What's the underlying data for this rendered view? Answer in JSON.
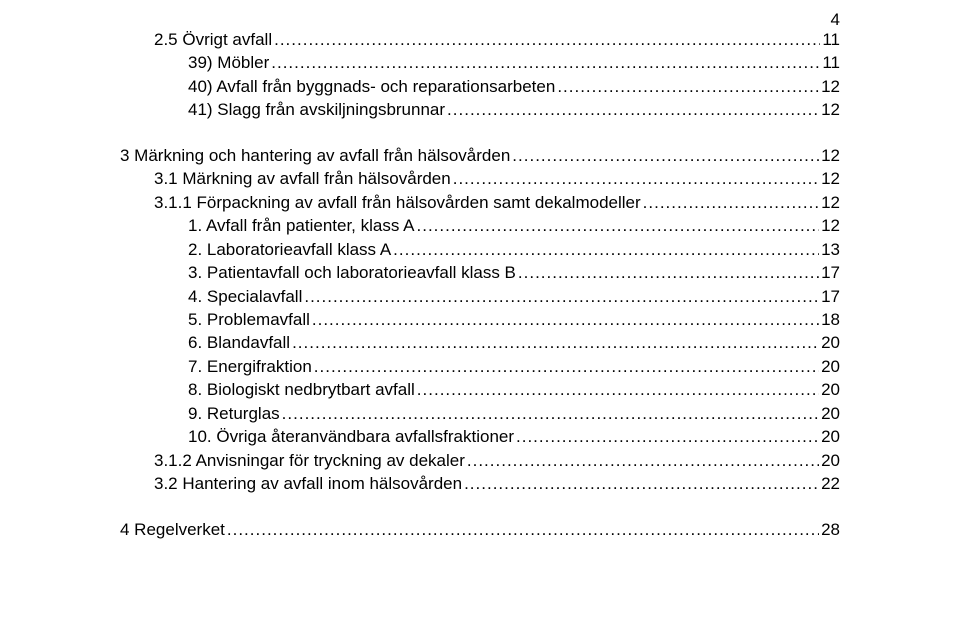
{
  "page_number": "4",
  "font": {
    "family": "Arial",
    "size_pt": 13
  },
  "colors": {
    "text": "#000000",
    "background": "#ffffff"
  },
  "toc": [
    {
      "label": "2.5 Övrigt avfall",
      "page": "11",
      "indent": 1,
      "spacer_before": false
    },
    {
      "label": "39) Möbler",
      "page": "11",
      "indent": 2,
      "spacer_before": false
    },
    {
      "label": "40) Avfall från byggnads- och reparationsarbeten",
      "page": "12",
      "indent": 2,
      "spacer_before": false
    },
    {
      "label": "41) Slagg från avskiljningsbrunnar",
      "page": "12",
      "indent": 2,
      "spacer_before": false
    },
    {
      "label": "3 Märkning och hantering av avfall från hälsovården",
      "page": "12",
      "indent": 0,
      "spacer_before": true
    },
    {
      "label": "3.1 Märkning av avfall från hälsovården",
      "page": "12",
      "indent": 1,
      "spacer_before": false
    },
    {
      "label": "3.1.1 Förpackning av avfall från hälsovården samt dekalmodeller",
      "page": "12",
      "indent": 1,
      "spacer_before": false
    },
    {
      "label": "1. Avfall från patienter, klass A",
      "page": "12",
      "indent": 2,
      "spacer_before": false
    },
    {
      "label": "2. Laboratorieavfall klass A",
      "page": "13",
      "indent": 2,
      "spacer_before": false
    },
    {
      "label": "3. Patientavfall och laboratorieavfall klass B",
      "page": "17",
      "indent": 2,
      "spacer_before": false
    },
    {
      "label": "4. Specialavfall",
      "page": "17",
      "indent": 2,
      "spacer_before": false
    },
    {
      "label": "5. Problemavfall",
      "page": "18",
      "indent": 2,
      "spacer_before": false
    },
    {
      "label": "6. Blandavfall",
      "page": "20",
      "indent": 2,
      "spacer_before": false
    },
    {
      "label": "7. Energifraktion",
      "page": "20",
      "indent": 2,
      "spacer_before": false
    },
    {
      "label": "8. Biologiskt nedbrytbart avfall",
      "page": "20",
      "indent": 2,
      "spacer_before": false
    },
    {
      "label": "9. Returglas",
      "page": "20",
      "indent": 2,
      "spacer_before": false
    },
    {
      "label": "10. Övriga återanvändbara avfallsfraktioner",
      "page": "20",
      "indent": 2,
      "spacer_before": false
    },
    {
      "label": "3.1.2 Anvisningar för tryckning av dekaler",
      "page": "20",
      "indent": 1,
      "spacer_before": false
    },
    {
      "label": "3.2 Hantering av avfall inom hälsovården",
      "page": "22",
      "indent": 1,
      "spacer_before": false
    },
    {
      "label": "4 Regelverket",
      "page": "28",
      "indent": 0,
      "spacer_before": true
    }
  ]
}
